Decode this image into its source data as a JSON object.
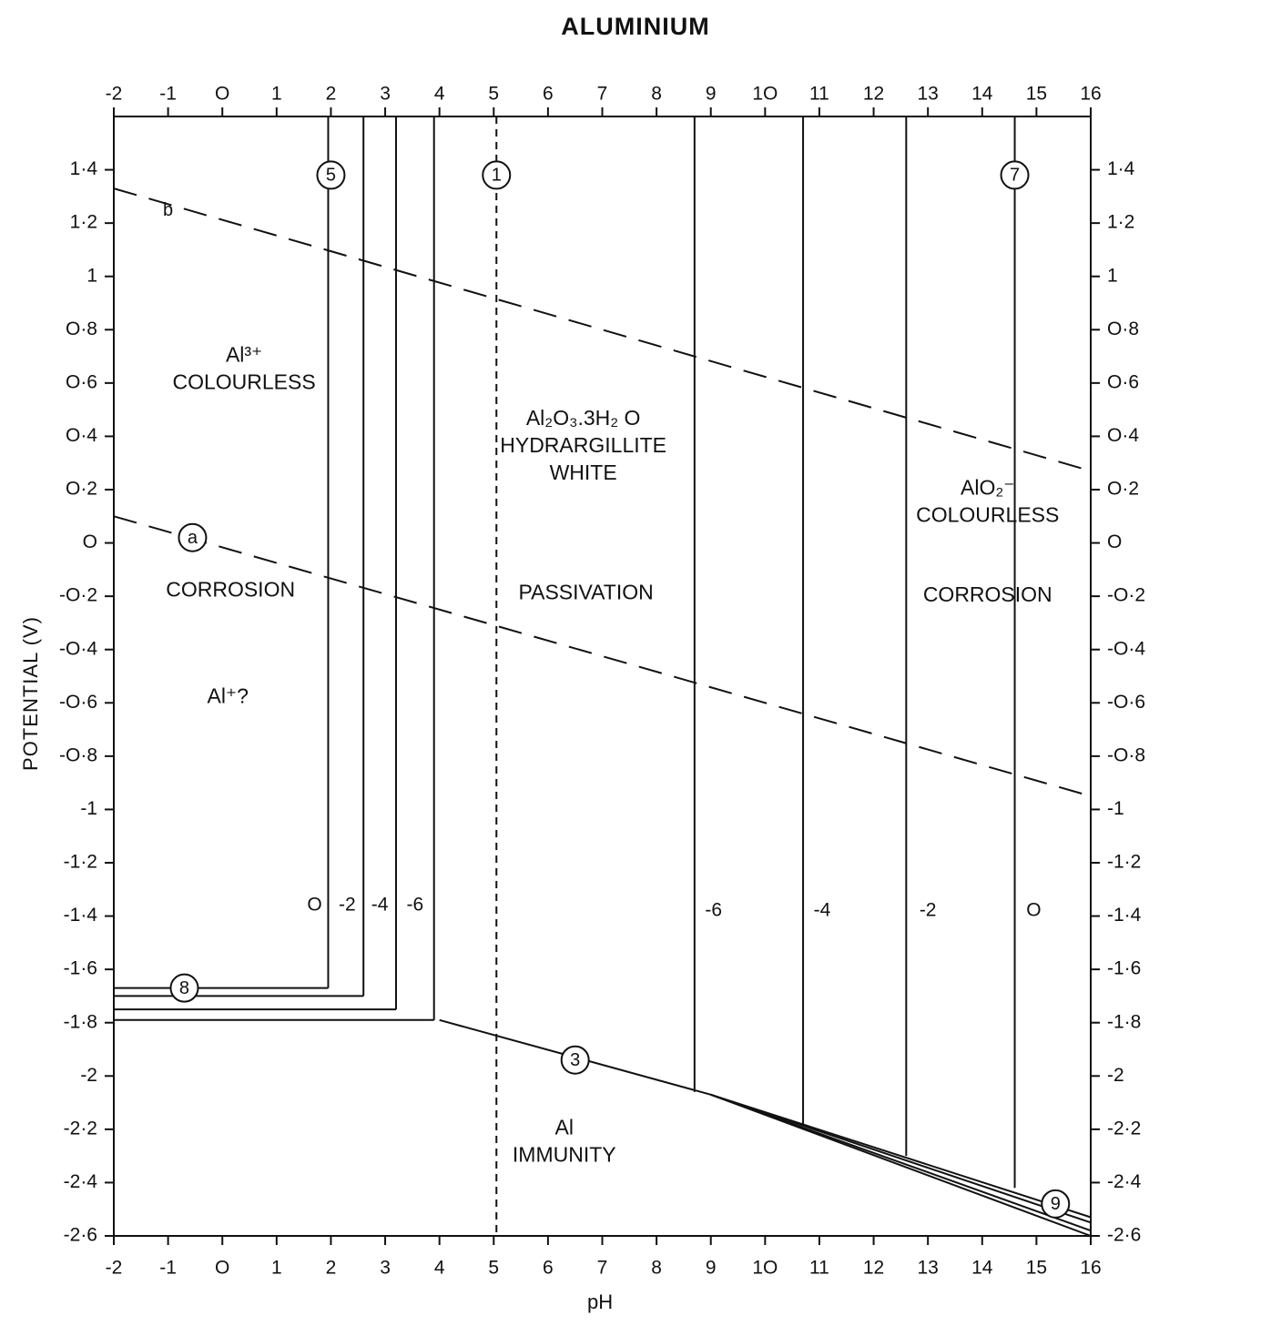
{
  "chart_data": {
    "type": "line",
    "title": "ALUMINIUM",
    "xlabel": "pH",
    "ylabel": "POTENTIAL (V)",
    "xlim": [
      -2,
      16
    ],
    "ylim": [
      -2.6,
      1.6
    ],
    "x_ticks": [
      -2,
      -1,
      0,
      1,
      2,
      3,
      4,
      5,
      6,
      7,
      8,
      9,
      10,
      11,
      12,
      13,
      14,
      15,
      16
    ],
    "x_tick_labels": [
      "-2",
      "-1",
      "O",
      "1",
      "2",
      "3",
      "4",
      "5",
      "6",
      "7",
      "8",
      "9",
      "1O",
      "11",
      "12",
      "13",
      "14",
      "15",
      "16"
    ],
    "y_ticks": [
      1.4,
      1.2,
      1,
      0.8,
      0.6,
      0.4,
      0.2,
      0,
      -0.2,
      -0.4,
      -0.6,
      -0.8,
      -1,
      -1.2,
      -1.4,
      -1.6,
      -1.8,
      -2,
      -2.2,
      -2.4,
      -2.6
    ],
    "y_tick_labels": [
      "1·4",
      "1·2",
      "1",
      "O·8",
      "O·6",
      "O·4",
      "O·2",
      "O",
      "-O·2",
      "-O·4",
      "-O·6",
      "-O·8",
      "-1",
      "-1·2",
      "-1·4",
      "-1·6",
      "-1·8",
      "-2",
      "-2·2",
      "-2·4",
      "-2·6"
    ],
    "grid": false,
    "series": [
      {
        "name": "b",
        "style": "dashed",
        "x": [
          -2,
          16
        ],
        "y": [
          1.33,
          0.27
        ]
      },
      {
        "name": "a",
        "style": "dashed",
        "x": [
          -2,
          16
        ],
        "y": [
          0.1,
          -0.95
        ]
      },
      {
        "name": "1",
        "style": "dashed",
        "x": [
          5.05,
          5.05
        ],
        "y": [
          1.6,
          -2.6
        ]
      },
      {
        "name": "3",
        "style": "solid",
        "x": [
          4,
          9,
          16
        ],
        "y": [
          -1.79,
          -2.07,
          -2.6
        ]
      },
      {
        "name": "5 (O)",
        "style": "solid",
        "x": [
          1.95,
          1.95
        ],
        "y": [
          1.6,
          -1.67
        ]
      },
      {
        "name": "5 (-2)",
        "style": "solid",
        "x": [
          2.6,
          2.6
        ],
        "y": [
          1.6,
          -1.7
        ]
      },
      {
        "name": "5 (-4)",
        "style": "solid",
        "x": [
          3.2,
          3.2
        ],
        "y": [
          1.6,
          -1.75
        ]
      },
      {
        "name": "5 (-6)",
        "style": "solid",
        "x": [
          3.9,
          3.9
        ],
        "y": [
          1.6,
          -1.79
        ]
      },
      {
        "name": "7 (-6)",
        "style": "solid",
        "x": [
          8.7,
          8.7
        ],
        "y": [
          1.6,
          -2.06
        ]
      },
      {
        "name": "7 (-4)",
        "style": "solid",
        "x": [
          10.7,
          10.7
        ],
        "y": [
          1.6,
          -2.18
        ]
      },
      {
        "name": "7 (-2)",
        "style": "solid",
        "x": [
          12.6,
          12.6
        ],
        "y": [
          1.6,
          -2.3
        ]
      },
      {
        "name": "7 (O)",
        "style": "solid",
        "x": [
          14.6,
          14.6
        ],
        "y": [
          1.6,
          -2.42
        ]
      },
      {
        "name": "8 (O)",
        "style": "solid",
        "x": [
          -2,
          1.95
        ],
        "y": [
          -1.67,
          -1.67
        ]
      },
      {
        "name": "8 (-2)",
        "style": "solid",
        "x": [
          -2,
          2.6
        ],
        "y": [
          -1.7,
          -1.7
        ]
      },
      {
        "name": "8 (-4)",
        "style": "solid",
        "x": [
          -2,
          3.2
        ],
        "y": [
          -1.75,
          -1.75
        ]
      },
      {
        "name": "8 (-6)",
        "style": "solid",
        "x": [
          -2,
          3.9
        ],
        "y": [
          -1.79,
          -1.79
        ]
      },
      {
        "name": "9 (O)",
        "style": "solid",
        "x": [
          9,
          16
        ],
        "y": [
          -2.07,
          -2.53
        ]
      },
      {
        "name": "9 (-2)",
        "style": "solid",
        "x": [
          9,
          16
        ],
        "y": [
          -2.07,
          -2.55
        ]
      },
      {
        "name": "9 (-4)",
        "style": "solid",
        "x": [
          9,
          16
        ],
        "y": [
          -2.07,
          -2.58
        ]
      }
    ],
    "line_labels": [
      {
        "text": "b",
        "x": -1,
        "y": 1.25,
        "circled": false
      },
      {
        "text": "a",
        "x": -0.55,
        "y": 0.02,
        "circled": true
      },
      {
        "text": "5",
        "x": 2.0,
        "y": 1.38,
        "circled": true
      },
      {
        "text": "1",
        "x": 5.05,
        "y": 1.38,
        "circled": true
      },
      {
        "text": "7",
        "x": 14.6,
        "y": 1.38,
        "circled": true
      },
      {
        "text": "8",
        "x": -0.7,
        "y": -1.67,
        "circled": true
      },
      {
        "text": "3",
        "x": 6.5,
        "y": -1.94,
        "circled": true
      },
      {
        "text": "9",
        "x": 15.35,
        "y": -2.48,
        "circled": true
      }
    ],
    "contour_labels": [
      {
        "text": "O",
        "x": 1.7,
        "y": -1.36
      },
      {
        "text": "-2",
        "x": 2.3,
        "y": -1.36
      },
      {
        "text": "-4",
        "x": 2.9,
        "y": -1.36
      },
      {
        "text": "-6",
        "x": 3.55,
        "y": -1.36
      },
      {
        "text": "-6",
        "x": 9.05,
        "y": -1.38
      },
      {
        "text": "-4",
        "x": 11.05,
        "y": -1.38
      },
      {
        "text": "-2",
        "x": 13.0,
        "y": -1.38
      },
      {
        "text": "O",
        "x": 14.95,
        "y": -1.38
      }
    ],
    "annotations": [
      {
        "lines": [
          "Al³⁺",
          "COLOURLESS"
        ],
        "x": 0.4,
        "y": 0.65
      },
      {
        "lines": [
          "CORROSION"
        ],
        "x": 0.15,
        "y": -0.18
      },
      {
        "lines": [
          "Al⁺?"
        ],
        "x": 0.1,
        "y": -0.58
      },
      {
        "lines": [
          "Al₂O₃.3H₂ O",
          "HYDRARGILLITE",
          "WHITE"
        ],
        "x": 6.65,
        "y": 0.36
      },
      {
        "lines": [
          "PASSIVATION"
        ],
        "x": 6.7,
        "y": -0.19
      },
      {
        "lines": [
          "AlO₂⁻",
          "COLOURLESS"
        ],
        "x": 14.1,
        "y": 0.15
      },
      {
        "lines": [
          "CORROSION"
        ],
        "x": 14.1,
        "y": -0.2
      },
      {
        "lines": [
          "Al",
          "IMMUNITY"
        ],
        "x": 6.3,
        "y": -2.25
      }
    ]
  }
}
